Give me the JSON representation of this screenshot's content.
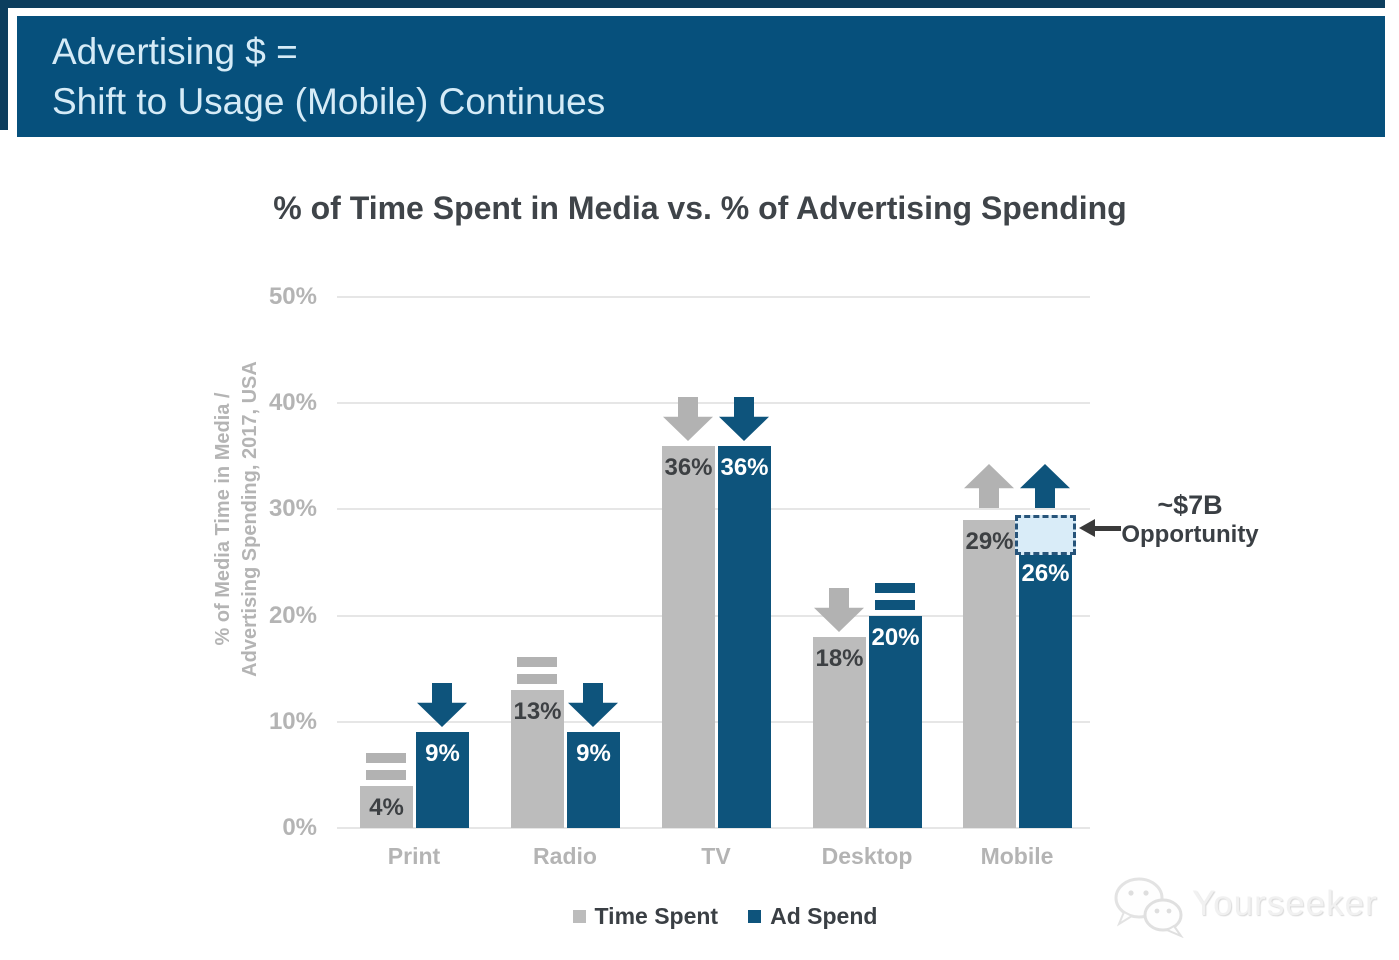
{
  "banner": {
    "line1": "Advertising $ =",
    "line2": "Shift to Usage (Mobile) Continues"
  },
  "chart_data": {
    "type": "bar",
    "title": "% of Time Spent in Media vs. % of Advertising Spending",
    "ylabel_line1": "% of Media Time in Media /",
    "ylabel_line2": "Advertising Spending, 2017, USA",
    "categories": [
      "Print",
      "Radio",
      "TV",
      "Desktop",
      "Mobile"
    ],
    "series": [
      {
        "name": "Time Spent",
        "values": [
          4,
          13,
          36,
          18,
          29
        ],
        "labels": [
          "4%",
          "13%",
          "36%",
          "18%",
          "29%"
        ],
        "trend": [
          "equal",
          "equal",
          "down",
          "down",
          "up"
        ]
      },
      {
        "name": "Ad Spend",
        "values": [
          9,
          9,
          36,
          20,
          26
        ],
        "labels": [
          "9%",
          "9%",
          "36%",
          "20%",
          "26%"
        ],
        "trend": [
          "down",
          "down",
          "down",
          "equal",
          "up"
        ]
      }
    ],
    "yticks": [
      "0%",
      "10%",
      "20%",
      "30%",
      "40%",
      "50%"
    ],
    "ylim": [
      0,
      50
    ],
    "grid": true,
    "legend_position": "bottom",
    "annotation": {
      "line1": "~$7B",
      "line2": "Opportunity",
      "category": "Mobile",
      "series": "Ad Spend",
      "gap_from_value": 26,
      "gap_to_value": 29
    }
  },
  "legend": {
    "items": [
      {
        "label": "Time Spent",
        "color": "#bcbcbc"
      },
      {
        "label": "Ad Spend",
        "color": "#0e547c"
      }
    ]
  },
  "colors": {
    "banner": "#06507c",
    "banner_dark": "#0c3e5e",
    "banner_text": "#d5ebf7",
    "bar_gray": "#bcbcbc",
    "bar_blue": "#0e547c",
    "marker_gray": "#b2b2b2",
    "grid": "#e6e6e6",
    "axis_text": "#b4b4b4",
    "title_text": "#3f4449",
    "label_dark": "#3d4043",
    "label_light": "#ffffff",
    "annotation_box_fill": "#d9ecf8",
    "annotation_box_border": "#27547a",
    "annotation_text": "#3a3f44"
  },
  "watermark": {
    "text": "Yourseeker"
  }
}
